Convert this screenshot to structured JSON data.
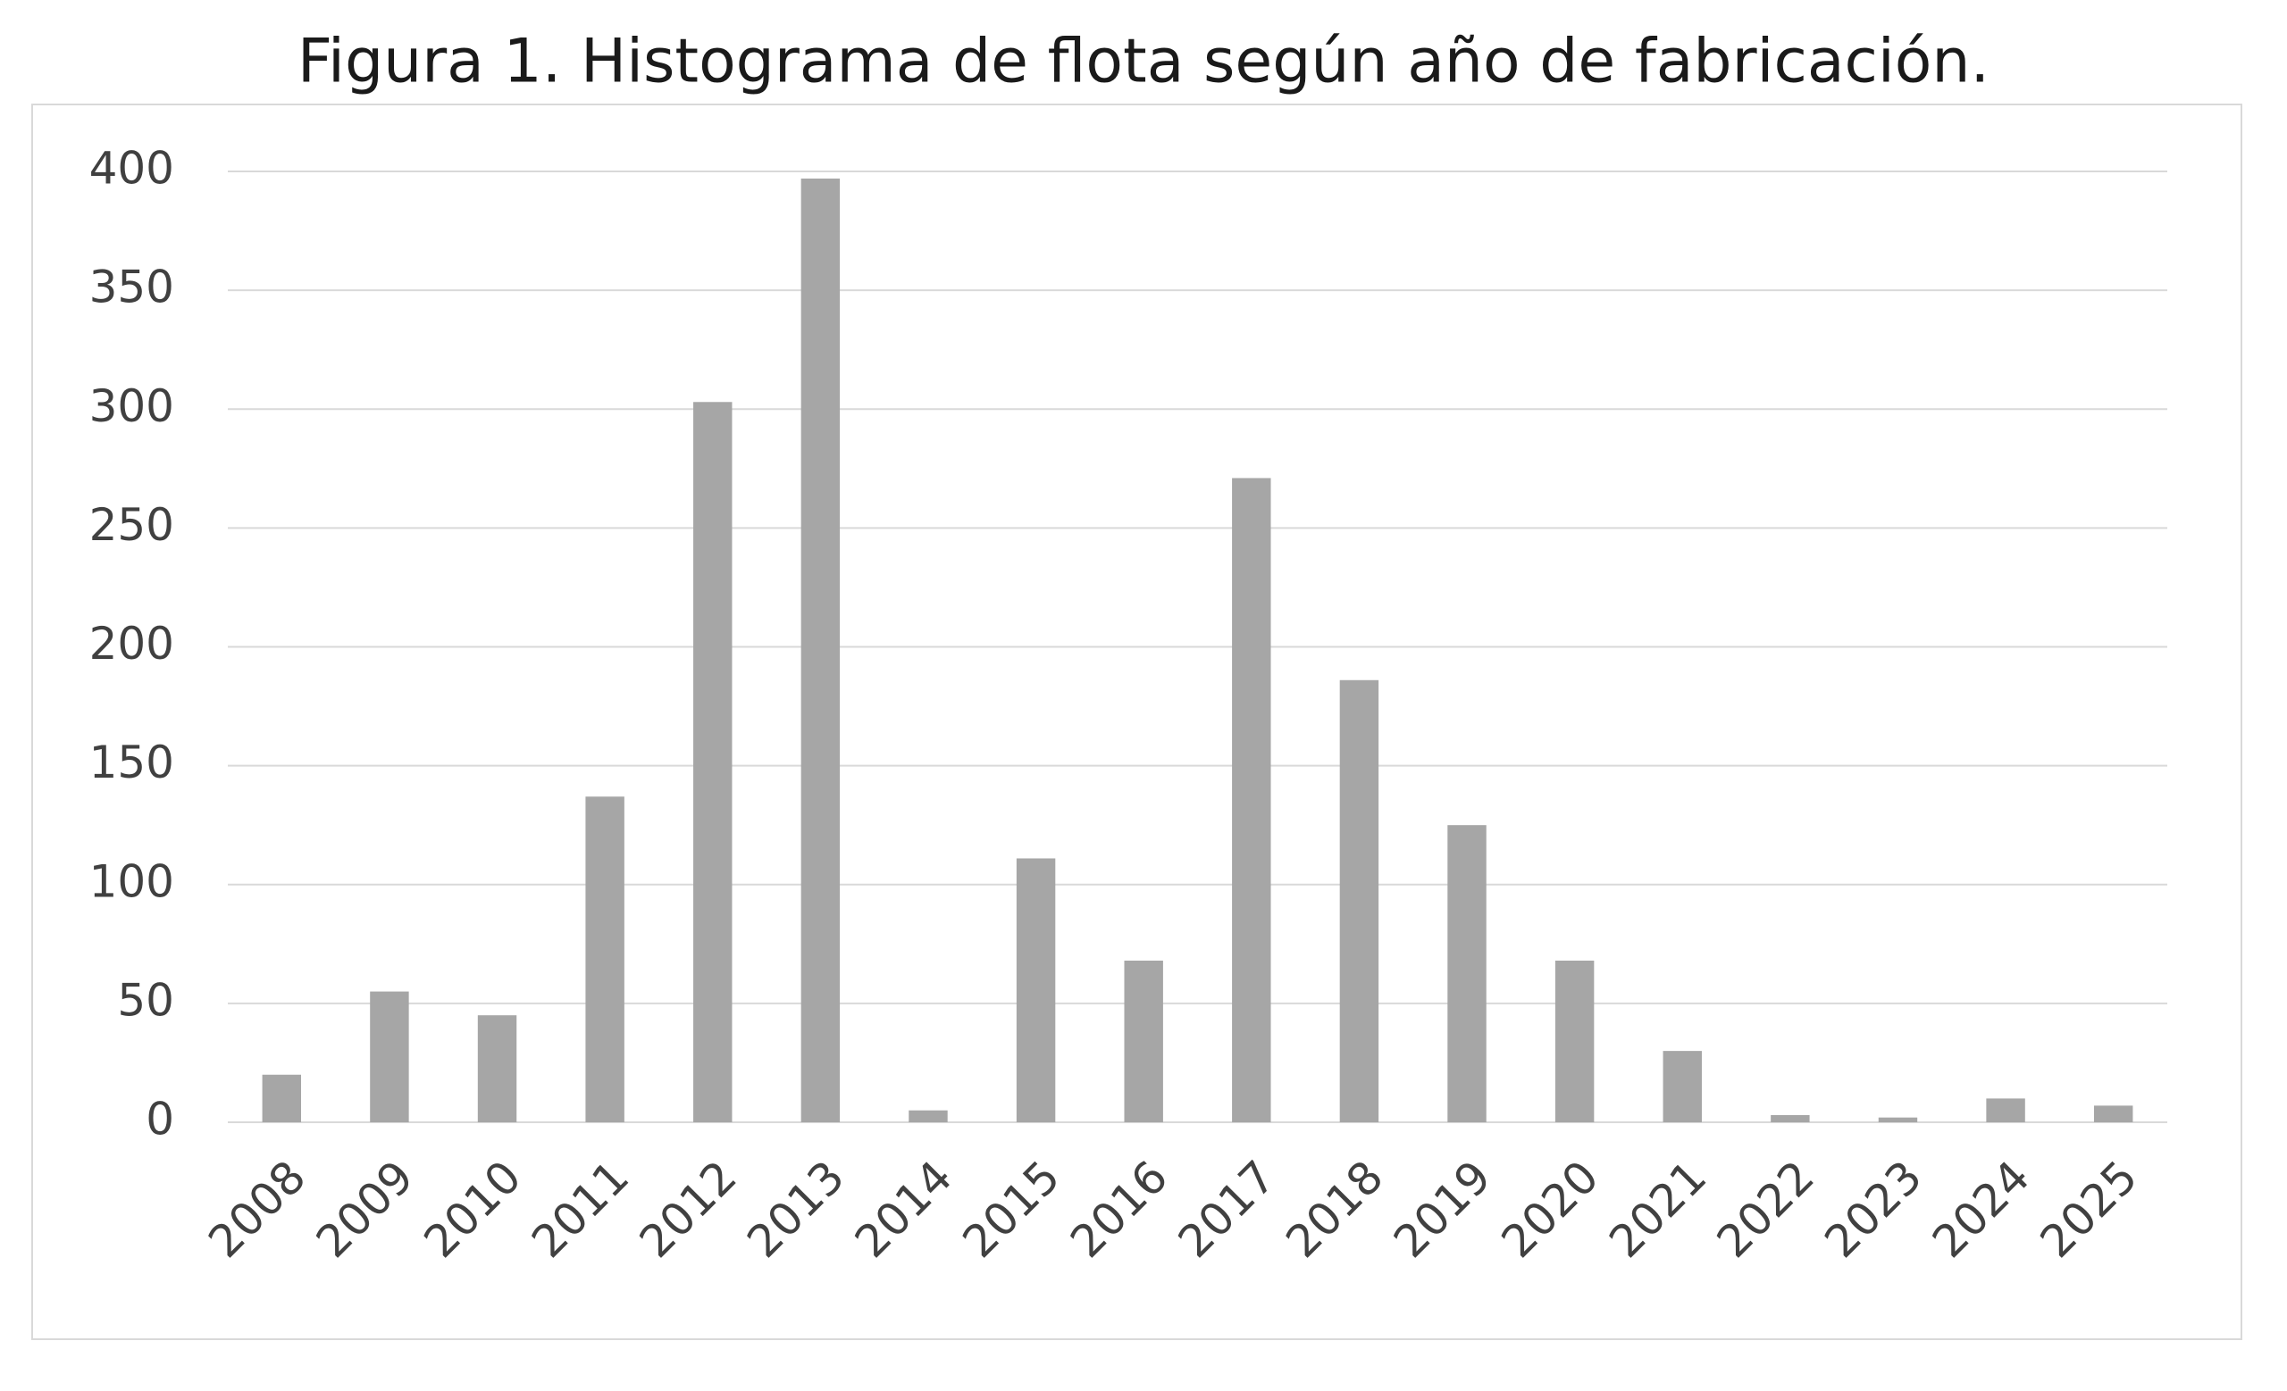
{
  "chart_data": {
    "type": "bar",
    "title": "Figura 1. Histograma de flota según año de fabricación.",
    "categories": [
      "2008",
      "2009",
      "2010",
      "2011",
      "2012",
      "2013",
      "2014",
      "2015",
      "2016",
      "2017",
      "2018",
      "2019",
      "2020",
      "2021",
      "2022",
      "2023",
      "2024",
      "2025"
    ],
    "values": [
      20,
      55,
      45,
      137,
      303,
      397,
      5,
      111,
      68,
      271,
      186,
      125,
      68,
      30,
      3,
      2,
      10,
      7
    ],
    "color": "#a6a6a6",
    "ylim": [
      0,
      400
    ],
    "yticks": [
      0,
      50,
      100,
      150,
      200,
      250,
      300,
      350,
      400
    ],
    "grid": true
  }
}
